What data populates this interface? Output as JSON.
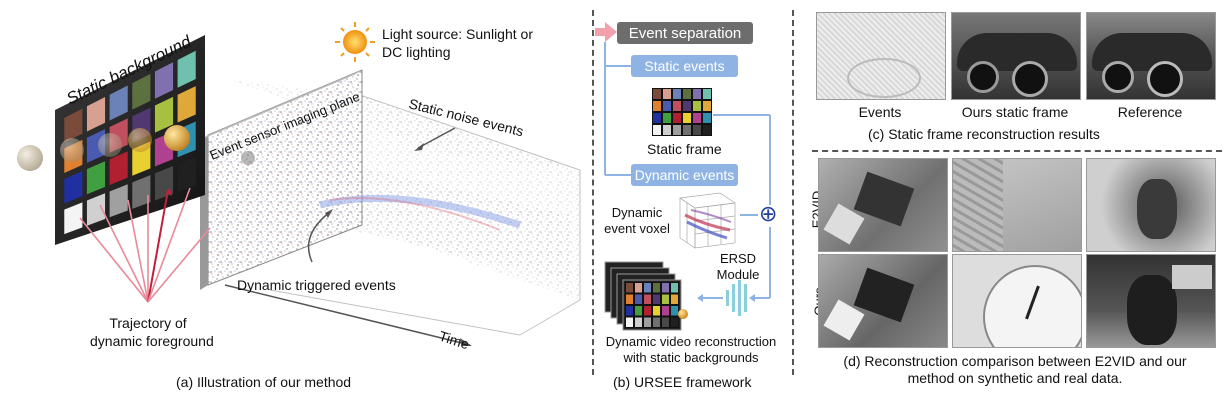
{
  "panel_a": {
    "static_background": "Static background",
    "light_source_line1": "Light source: Sunlight or",
    "light_source_line2": "DC lighting",
    "imaging_plane": "Event sensor imaging plane",
    "static_noise": "Static noise events",
    "dynamic_triggered": "Dynamic triggered events",
    "trajectory_line1": "Trajectory of",
    "trajectory_line2": "dynamic foreground",
    "time": "Time",
    "caption": "(a) Illustration of our method",
    "checker_colors": [
      "#7a4a3a",
      "#d8a090",
      "#6a82b8",
      "#5c7040",
      "#8070b0",
      "#70c0b0",
      "#e08030",
      "#4a5ab0",
      "#c05060",
      "#503870",
      "#a8c040",
      "#e0a838",
      "#2030a0",
      "#40a040",
      "#b02030",
      "#e8d030",
      "#b04090",
      "#3090b0",
      "#f4f4f4",
      "#d0d0d0",
      "#a0a0a0",
      "#707070",
      "#484848",
      "#202020"
    ]
  },
  "panel_b": {
    "event_separation": "Event separation",
    "static_events": "Static events",
    "static_frame": "Static frame",
    "dynamic_events": "Dynamic events",
    "voxel_line1": "Dynamic",
    "voxel_line2": "event voxel",
    "ersd_line1": "ERSD",
    "ersd_line2": "Module",
    "recon_line1": "Dynamic video reconstruction",
    "recon_line2": "with static backgrounds",
    "caption": "(b) URSEE framework",
    "plus_symbol": "⊕"
  },
  "panel_c": {
    "labels": [
      "Events",
      "Ours static frame",
      "Reference"
    ],
    "caption": "(c) Static frame reconstruction results"
  },
  "panel_d": {
    "row_labels": [
      "E2VID",
      "Ours"
    ],
    "caption_line1": "(d) Reconstruction comparison between E2VID and our",
    "caption_line2": "method on synthetic and real data."
  }
}
